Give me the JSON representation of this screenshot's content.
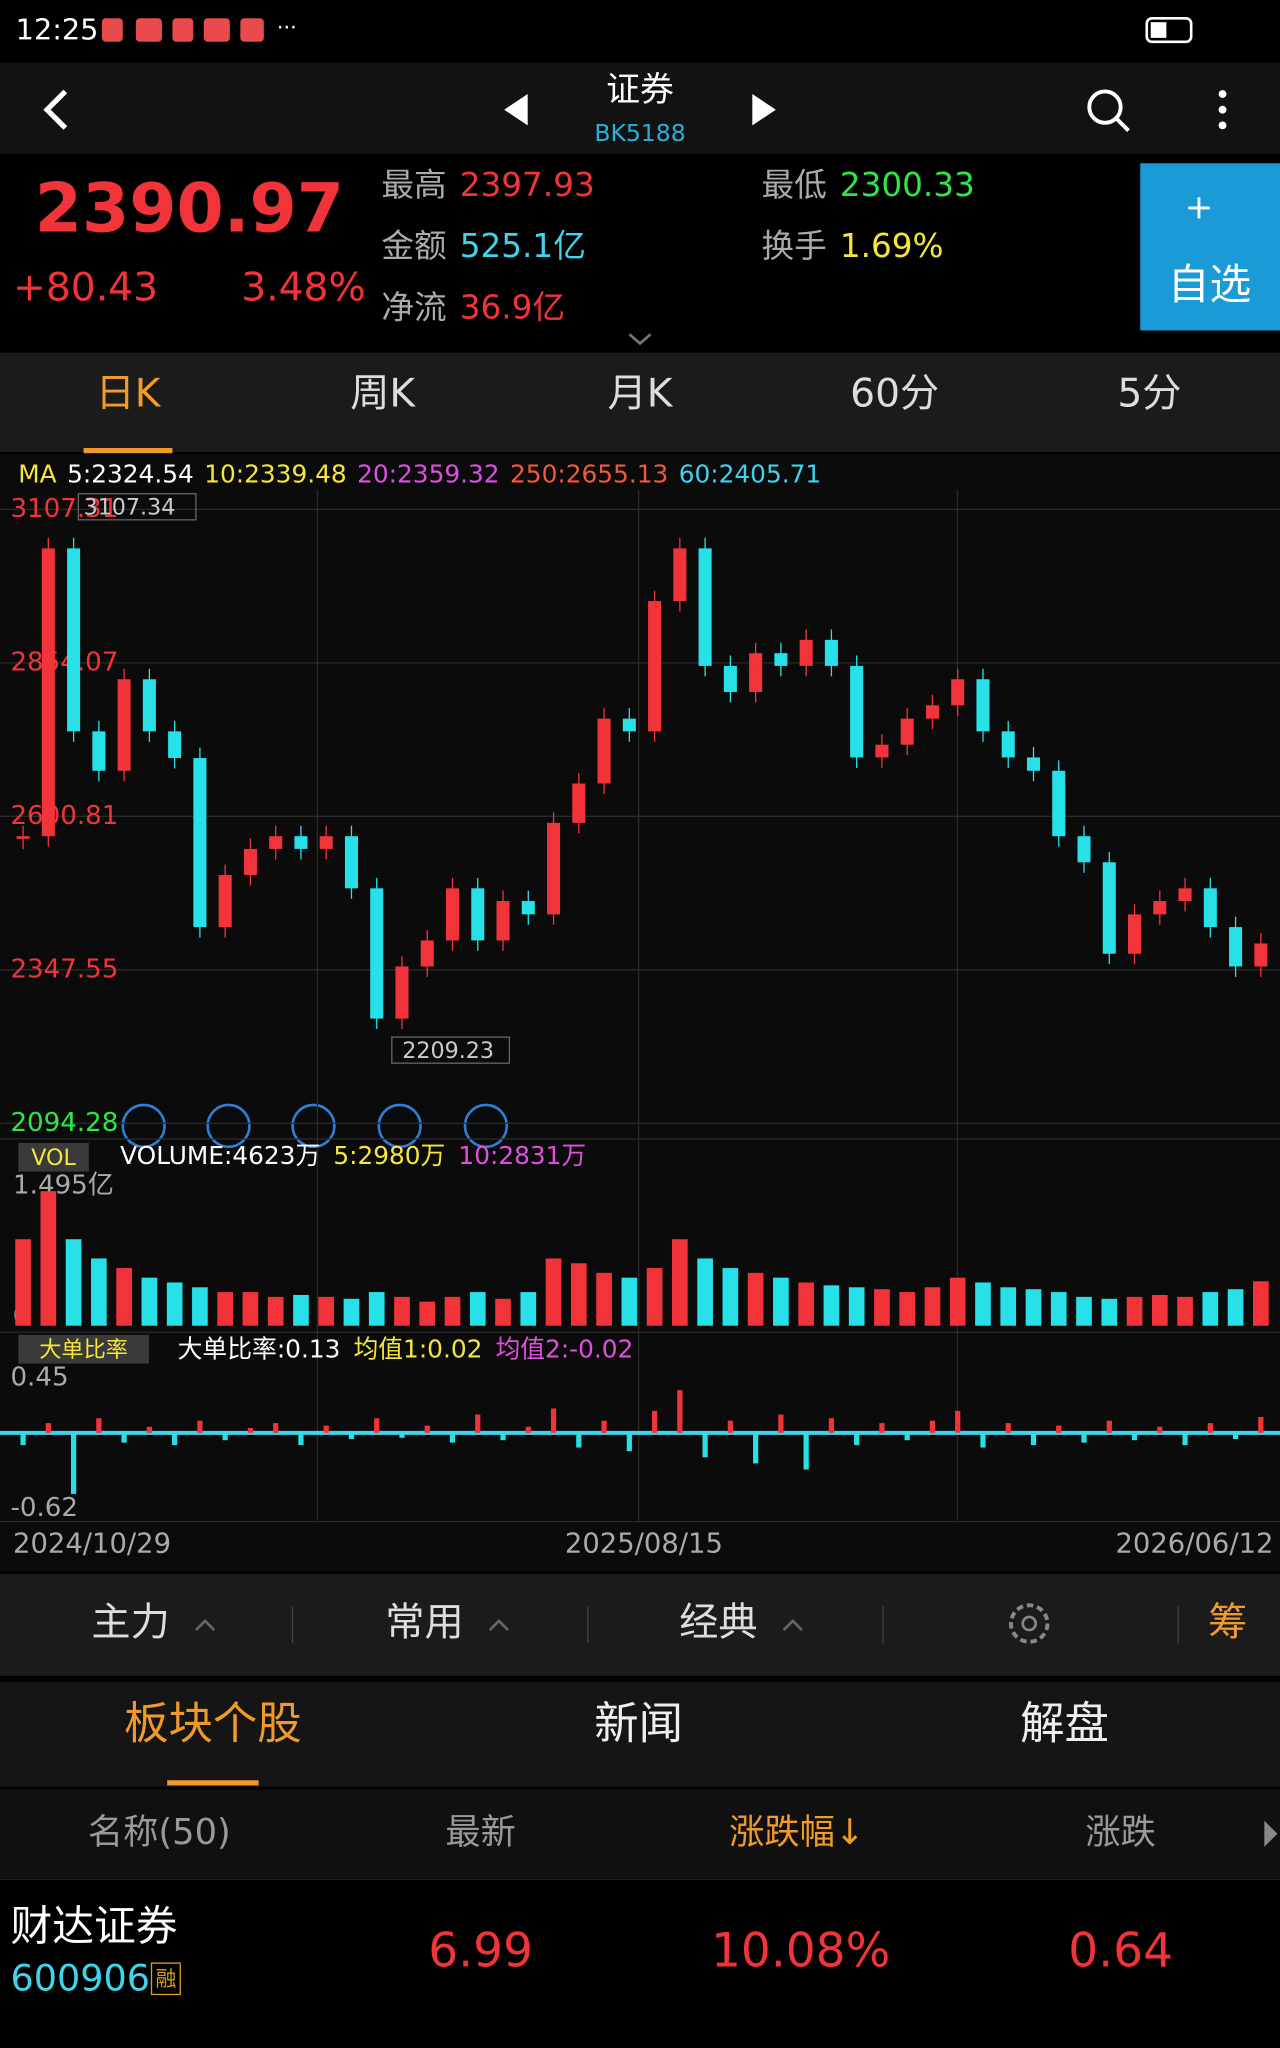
{
  "status_bar": {
    "time": "12:25",
    "more": "···"
  },
  "header": {
    "title": "证券",
    "code": "BK5188"
  },
  "quote": {
    "price": "2390.97",
    "change": "+80.43",
    "change_pct": "3.48%",
    "high_label": "最高",
    "high": "2397.93",
    "low_label": "最低",
    "low": "2300.33",
    "amount_label": "金额",
    "amount": "525.1亿",
    "turnover_label": "换手",
    "turnover": "1.69%",
    "netflow_label": "净流",
    "netflow": "36.9亿",
    "add_icon": "+",
    "add_label": "自选"
  },
  "period_tabs": [
    "日K",
    "周K",
    "月K",
    "60分",
    "5分"
  ],
  "ma_legend": [
    "MA",
    "5:2324.54",
    "10:2339.48",
    "20:2359.32",
    "250:2655.13",
    "60:2405.71"
  ],
  "price_chart": {
    "ylim": [
      2094.28,
      3107.31
    ],
    "yticks": [
      2094.28,
      2347.55,
      2600.81,
      2854.07,
      3107.31
    ],
    "max_label": "3107.34",
    "min_label": "2209.23",
    "closes": [
      2568,
      3043,
      2741,
      2676,
      2827,
      2741,
      2697,
      2418,
      2504,
      2547,
      2568,
      2547,
      2568,
      2482,
      2267,
      2353,
      2396,
      2482,
      2396,
      2461,
      2439,
      2590,
      2655,
      2762,
      2741,
      2956,
      3043,
      2849,
      2806,
      2870,
      2849,
      2892,
      2849,
      2698,
      2719,
      2762,
      2784,
      2827,
      2741,
      2698,
      2676,
      2568,
      2525,
      2374,
      2439,
      2461,
      2482,
      2418,
      2353,
      2391
    ]
  },
  "volume_chart": {
    "label": "VOL",
    "legend": [
      "VOLUME:4623万",
      "5:2980万",
      "10:2831万"
    ],
    "max_label": "1.495亿",
    "zero_label": "0",
    "ylim": [
      0,
      14950
    ],
    "values": [
      9000,
      14000,
      9000,
      7000,
      6000,
      5000,
      4500,
      4000,
      3500,
      3500,
      3000,
      3200,
      3000,
      2800,
      3500,
      3000,
      2500,
      3000,
      3500,
      2800,
      3500,
      7000,
      6500,
      5500,
      5000,
      6000,
      9000,
      7000,
      6000,
      5500,
      5000,
      4500,
      4200,
      4000,
      3800,
      3500,
      4000,
      5000,
      4500,
      4000,
      3800,
      3500,
      3000,
      2800,
      3000,
      3200,
      3000,
      3500,
      3800,
      4623
    ]
  },
  "ratio_chart": {
    "label": "大单比率",
    "legend": [
      "大单比率:0.13",
      "均值1:0.02",
      "均值2:-0.02"
    ],
    "ylim": [
      -0.62,
      0.45
    ],
    "yticks": [
      -0.62,
      0.45
    ],
    "values": [
      -0.1,
      0.08,
      -0.5,
      0.12,
      -0.08,
      0.05,
      -0.1,
      0.1,
      -0.06,
      0.04,
      0.08,
      -0.1,
      0.06,
      -0.05,
      0.12,
      -0.04,
      0.06,
      -0.08,
      0.15,
      -0.06,
      0.05,
      0.2,
      -0.12,
      0.1,
      -0.15,
      0.18,
      0.35,
      -0.2,
      0.1,
      -0.25,
      0.15,
      -0.3,
      0.12,
      -0.1,
      0.08,
      -0.06,
      0.1,
      0.18,
      -0.12,
      0.08,
      -0.1,
      0.06,
      -0.08,
      0.1,
      -0.06,
      0.05,
      -0.1,
      0.08,
      -0.05,
      0.13
    ]
  },
  "dates": [
    "2024/10/29",
    "2025/08/15",
    "2026/06/12"
  ],
  "toolbar": [
    "主力",
    "常用",
    "经典",
    "筹"
  ],
  "section_tabs": [
    "板块个股",
    "新闻",
    "解盘"
  ],
  "table": {
    "columns": [
      "名称(50)",
      "最新",
      "涨跌幅↓",
      "涨跌"
    ],
    "rows": [
      {
        "name": "财达证券",
        "code": "600906",
        "badge": "融",
        "last": "6.99",
        "pct": "10.08%",
        "change": "0.64"
      }
    ]
  }
}
